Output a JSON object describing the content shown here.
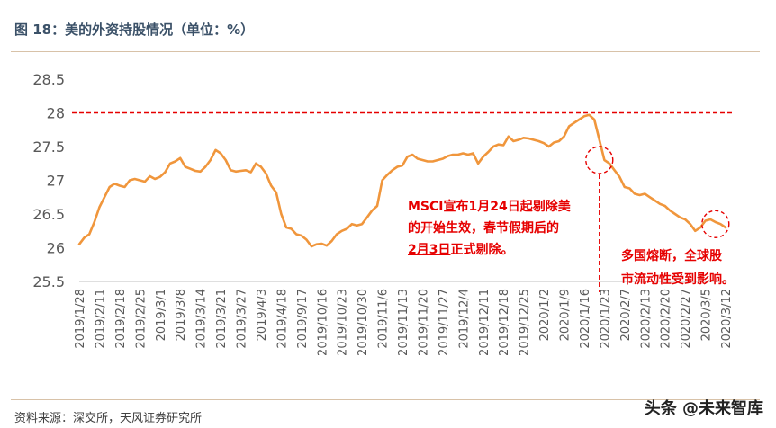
{
  "title": "图 18：美的外资持股情况（单位：%）",
  "source": "资料来源：深交所，天风证券研究所",
  "watermark": "头条 @未来智库",
  "colors": {
    "line": "#f0963c",
    "reference": "#e60000",
    "annotation": "#e60000",
    "title": "#3b5168"
  },
  "chart_data": {
    "type": "line",
    "title": "",
    "xlabel": "",
    "ylabel": "",
    "ylim": [
      25.5,
      28.5
    ],
    "yticks": [
      "25.5",
      "26",
      "26.5",
      "27",
      "27.5",
      "28",
      "28.5"
    ],
    "grid": false,
    "xtick_labels": [
      "2019/1/28",
      "2019/2/11",
      "2019/2/18",
      "2019/2/25",
      "2019/3/1",
      "2019/3/8",
      "2019/3/14",
      "2019/3/21",
      "2019/3/27",
      "2019/4/3",
      "2019/4/18",
      "2019/9/17",
      "2019/10/16",
      "2019/10/23",
      "2019/10/30",
      "2019/11/6",
      "2019/11/13",
      "2019/11/20",
      "2019/11/27",
      "2019/12/4",
      "2019/12/11",
      "2019/12/18",
      "2019/12/25",
      "2020/1/2",
      "2020/1/9",
      "2020/1/16",
      "2020/1/23",
      "2020/2/7",
      "2020/2/13",
      "2020/2/20",
      "2020/2/27",
      "2020/3/5",
      "2020/3/12"
    ],
    "values": [
      26.05,
      26.15,
      26.2,
      26.38,
      26.6,
      26.75,
      26.9,
      26.95,
      26.92,
      26.9,
      27.0,
      27.02,
      27.0,
      26.98,
      27.06,
      27.02,
      27.05,
      27.12,
      27.25,
      27.28,
      27.33,
      27.2,
      27.17,
      27.14,
      27.13,
      27.2,
      27.3,
      27.45,
      27.4,
      27.3,
      27.15,
      27.13,
      27.14,
      27.15,
      27.12,
      27.25,
      27.2,
      27.1,
      26.92,
      26.82,
      26.5,
      26.3,
      26.28,
      26.2,
      26.18,
      26.12,
      26.02,
      26.05,
      26.06,
      26.03,
      26.1,
      26.2,
      26.25,
      26.28,
      26.35,
      26.33,
      26.35,
      26.45,
      26.55,
      26.62,
      27.0,
      27.08,
      27.15,
      27.2,
      27.22,
      27.35,
      27.38,
      27.32,
      27.3,
      27.28,
      27.28,
      27.3,
      27.32,
      27.36,
      27.38,
      27.38,
      27.4,
      27.38,
      27.4,
      27.25,
      27.35,
      27.42,
      27.5,
      27.53,
      27.52,
      27.65,
      27.58,
      27.6,
      27.63,
      27.62,
      27.6,
      27.58,
      27.55,
      27.5,
      27.56,
      27.58,
      27.65,
      27.8,
      27.85,
      27.9,
      27.95,
      27.97,
      27.9,
      27.6,
      27.3,
      27.25,
      27.15,
      27.05,
      26.9,
      26.88,
      26.8,
      26.78,
      26.8,
      26.75,
      26.7,
      26.65,
      26.62,
      26.55,
      26.5,
      26.45,
      26.42,
      26.35,
      26.25,
      26.3,
      26.4,
      26.42,
      26.38,
      26.35,
      26.3
    ],
    "reference_line": {
      "y": 28
    },
    "events": [
      {
        "x_index": 103,
        "y": 27.3
      },
      {
        "x_index": 126,
        "y": 26.35
      }
    ]
  },
  "annotations": {
    "msci": {
      "line1": "MSCI宣布1月24日起剔除美",
      "line2": "的开始生效，春节假期后的",
      "line3_marked": "2月3日",
      "line3_rest": "正式剔除。"
    },
    "circuit": {
      "line1": "多国熔断，全球股",
      "line2": "市流动性受到影响。"
    }
  }
}
